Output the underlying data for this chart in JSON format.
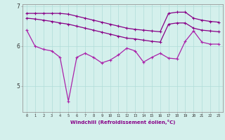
{
  "xlabel": "Windchill (Refroidissement éolien,°C)",
  "bg_color": "#d4f0ec",
  "grid_color": "#b0ddd8",
  "line_color": "#880088",
  "line_color2": "#aa22aa",
  "xlim_min": -0.5,
  "xlim_max": 23.5,
  "ylim_min": 4.35,
  "ylim_max": 7.05,
  "yticks": [
    5,
    6,
    7
  ],
  "xticks": [
    0,
    1,
    2,
    3,
    4,
    5,
    6,
    7,
    8,
    9,
    10,
    11,
    12,
    13,
    14,
    15,
    16,
    17,
    18,
    19,
    20,
    21,
    22,
    23
  ],
  "series1": [
    6.82,
    6.82,
    6.82,
    6.82,
    6.82,
    6.8,
    6.75,
    6.7,
    6.65,
    6.6,
    6.55,
    6.5,
    6.45,
    6.42,
    6.4,
    6.38,
    6.36,
    6.82,
    6.85,
    6.85,
    6.7,
    6.65,
    6.62,
    6.6
  ],
  "series2": [
    6.7,
    6.68,
    6.65,
    6.62,
    6.58,
    6.55,
    6.5,
    6.45,
    6.4,
    6.35,
    6.3,
    6.25,
    6.2,
    6.18,
    6.15,
    6.12,
    6.1,
    6.55,
    6.58,
    6.58,
    6.45,
    6.4,
    6.38,
    6.36
  ],
  "series3": [
    6.4,
    6.0,
    5.92,
    5.88,
    5.72,
    4.62,
    5.72,
    5.82,
    5.72,
    5.58,
    5.65,
    5.78,
    5.95,
    5.88,
    5.6,
    5.72,
    5.82,
    5.7,
    5.68,
    6.12,
    6.38,
    6.1,
    6.05,
    6.05
  ]
}
